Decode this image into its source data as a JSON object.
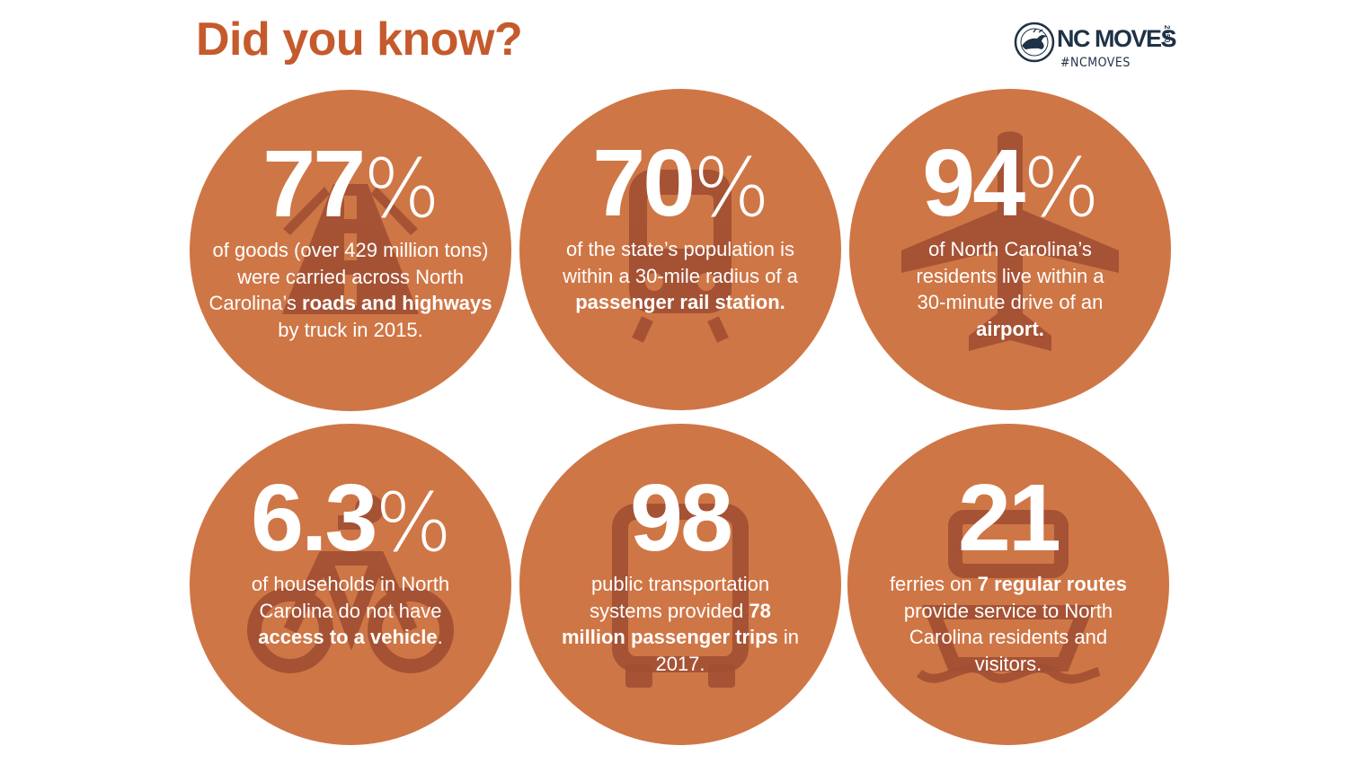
{
  "header": {
    "title": "Did you know?"
  },
  "logo": {
    "brand": "NC MOVES",
    "year": "2050",
    "hashtag": "#NCMOVES"
  },
  "colors": {
    "title": "#c55a2c",
    "circle": "#cf7646",
    "icon": "#a14f33",
    "text": "#ffffff",
    "logo": "#1f3247"
  },
  "stats": [
    {
      "icon": "road-icon",
      "number": "77",
      "unit": "%",
      "text1": "of goods (over 429 million tons) were carried across North Carolina’s ",
      "bold1": "roads and highways",
      "text2": " by truck in 2015.",
      "bold2": "",
      "text3": ""
    },
    {
      "icon": "train-icon",
      "number": "70",
      "unit": "%",
      "text1": "of the state’s population is within a 30-mile radius of a ",
      "bold1": "passenger rail station.",
      "text2": "",
      "bold2": "",
      "text3": ""
    },
    {
      "icon": "airplane-icon",
      "number": "94",
      "unit": "%",
      "text1": "of North Carolina’s residents live within a 30-minute drive of an ",
      "bold1": "airport.",
      "text2": "",
      "bold2": "",
      "text3": ""
    },
    {
      "icon": "bicycle-icon",
      "number": "6.3",
      "unit": "%",
      "text1": "of households in North Carolina do not have ",
      "bold1": "access to a vehicle",
      "text2": ".",
      "bold2": "",
      "text3": ""
    },
    {
      "icon": "bus-icon",
      "number": "98",
      "unit": "",
      "text1": "public transportation systems provided ",
      "bold1": "78 million passenger trips",
      "text2": " in 2017.",
      "bold2": "",
      "text3": ""
    },
    {
      "icon": "ferry-icon",
      "number": "21",
      "unit": "",
      "text1": "ferries on ",
      "bold1": "7 regular routes",
      "text2": " provide service to North Carolina residents and visitors.",
      "bold2": "",
      "text3": ""
    }
  ]
}
